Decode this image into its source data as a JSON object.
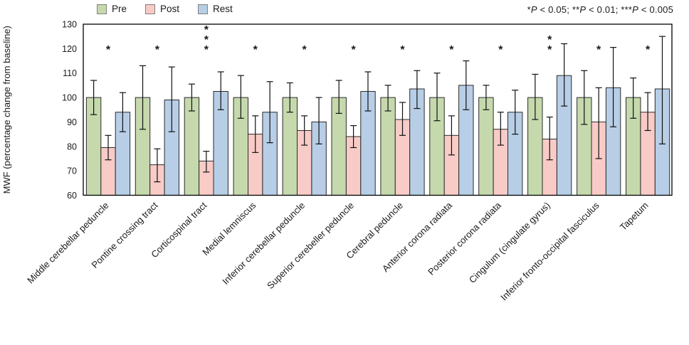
{
  "figure": {
    "background": "#ffffff",
    "axis_color": "#000000",
    "bar_stroke_color": "#2b2b2b",
    "error_bar_color": "#111111"
  },
  "legend": {
    "position": "top-left",
    "items": [
      {
        "label": "Pre",
        "color": "#c5d9ad",
        "swatch_icon": "green-square-swatch"
      },
      {
        "label": "Post",
        "color": "#f8cbc7",
        "swatch_icon": "pink-square-swatch"
      },
      {
        "label": "Rest",
        "color": "#b7cee6",
        "swatch_icon": "blue-square-swatch"
      }
    ]
  },
  "annotation": {
    "segments": [
      {
        "text": "*",
        "italic": false
      },
      {
        "text": "P",
        "italic": true
      },
      {
        "text": " < 0.05; **",
        "italic": false
      },
      {
        "text": "P",
        "italic": true
      },
      {
        "text": " < 0.01; ***",
        "italic": false
      },
      {
        "text": "P",
        "italic": true
      },
      {
        "text": " < 0.005",
        "italic": false
      }
    ]
  },
  "chart_data": {
    "type": "bar",
    "title": "",
    "xlabel": "",
    "ylabel": "MWF (percentage change from baseline)",
    "ylim": [
      60,
      130
    ],
    "yticks": [
      60,
      70,
      80,
      90,
      100,
      110,
      120,
      130
    ],
    "grid": false,
    "legend_position": "top-left",
    "error_bars": true,
    "x_tick_rotation_deg": -45,
    "categories": [
      "Middle cerebellar peduncle",
      "Pontine crossing tract",
      "Corticospinal tract",
      "Medial lemniscus",
      "Inferior cerebellar peduncle",
      "Superior cerebeller peduncle",
      "Cerebral peduncle",
      "Anterior corona radiata",
      "Posterior corona radiata",
      "Cingulum (cingulate gyrus)",
      "Inferior fronto-occipital fasciculus",
      "Tapetum"
    ],
    "series": [
      {
        "name": "Pre",
        "color": "#c5d9ad",
        "values": [
          100,
          100,
          100,
          100,
          100,
          100,
          100,
          100,
          100,
          100,
          100,
          100
        ],
        "err_low": [
          93,
          87,
          94.5,
          91.5,
          94,
          93.5,
          94.5,
          90.5,
          95,
          91,
          89,
          91.5
        ],
        "err_high": [
          107,
          113,
          105.5,
          109,
          106,
          107,
          105,
          110,
          105,
          109.5,
          111,
          108
        ]
      },
      {
        "name": "Post",
        "color": "#f8cbc7",
        "values": [
          79.5,
          72.5,
          74,
          85,
          86.5,
          84,
          91,
          84.5,
          87,
          83,
          90,
          94
        ],
        "err_low": [
          74.5,
          65.5,
          69.5,
          77.5,
          80.5,
          79.5,
          84.5,
          76.5,
          80.5,
          74.5,
          75,
          86.5
        ],
        "err_high": [
          84.5,
          79,
          78,
          92.5,
          92.5,
          88.5,
          98,
          92.5,
          94,
          92,
          104,
          102
        ]
      },
      {
        "name": "Rest",
        "color": "#b7cee6",
        "values": [
          94,
          99,
          102.5,
          94,
          90,
          102.5,
          103.5,
          105,
          94,
          109,
          104,
          103.5
        ],
        "err_low": [
          86,
          86,
          95,
          81.5,
          81,
          94.5,
          95.5,
          95,
          85,
          96.5,
          88,
          81
        ],
        "err_high": [
          102,
          112.5,
          110.5,
          106.5,
          100,
          110.5,
          111,
          115,
          103,
          122,
          120.5,
          125
        ]
      }
    ],
    "significance": [
      "*",
      "*",
      "***",
      "*",
      "*",
      "*",
      "*",
      "*",
      "*",
      "**",
      "*",
      "*"
    ]
  }
}
